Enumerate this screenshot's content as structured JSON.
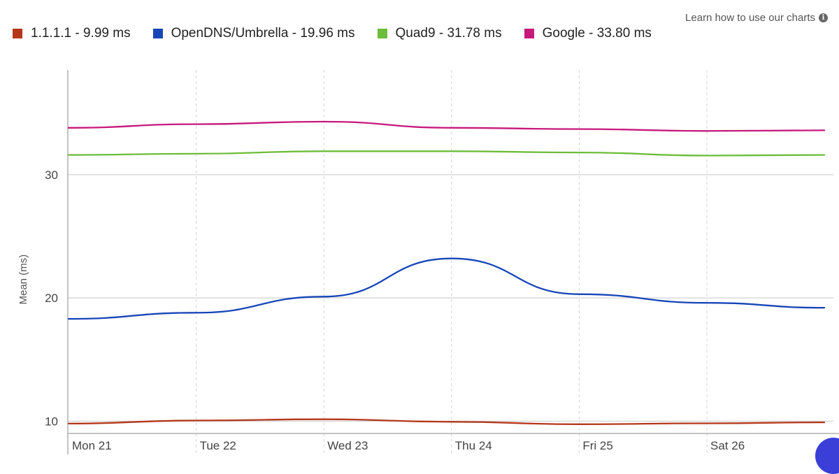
{
  "header": {
    "help_link_label": "Learn how to use our charts",
    "help_icon": "info-circle-icon"
  },
  "legend": [
    {
      "label": "1.1.1.1 - 9.99 ms",
      "color": "#b5371a"
    },
    {
      "label": "OpenDNS/Umbrella - 19.96 ms",
      "color": "#1746b8"
    },
    {
      "label": "Quad9 - 31.78 ms",
      "color": "#6cbd3a"
    },
    {
      "label": "Google - 33.80 ms",
      "color": "#c7197c"
    }
  ],
  "chart_data": {
    "type": "line",
    "ylabel": "Mean (ms)",
    "xlabel": "",
    "x_tick_labels": [
      "Mon 21",
      "Tue 22",
      "Wed 23",
      "Thu 24",
      "Fri 25",
      "Sat 26"
    ],
    "y_ticks": [
      10,
      20,
      30
    ],
    "ylim": [
      9.0,
      38.5
    ],
    "grid": true,
    "legend_position": "top-left",
    "series": [
      {
        "name": "1.1.1.1",
        "color": "#b5371a",
        "x": [
          0,
          1,
          2,
          3,
          4,
          5,
          5.92
        ],
        "values": [
          9.8,
          10.05,
          10.15,
          9.95,
          9.75,
          9.82,
          9.9
        ]
      },
      {
        "name": "OpenDNS/Umbrella",
        "color": "#1746b8",
        "x": [
          0,
          1,
          2,
          3,
          4,
          5,
          5.92
        ],
        "values": [
          18.3,
          18.8,
          20.1,
          23.2,
          20.3,
          19.6,
          19.2
        ]
      },
      {
        "name": "Quad9",
        "color": "#6cbd3a",
        "x": [
          0,
          1,
          2,
          3,
          4,
          5,
          5.92
        ],
        "values": [
          31.6,
          31.7,
          31.9,
          31.9,
          31.8,
          31.55,
          31.6
        ]
      },
      {
        "name": "Google",
        "color": "#c7197c",
        "x": [
          0,
          1,
          2,
          3,
          4,
          5,
          5.92
        ],
        "values": [
          33.8,
          34.1,
          34.3,
          33.8,
          33.7,
          33.55,
          33.6
        ]
      }
    ]
  }
}
